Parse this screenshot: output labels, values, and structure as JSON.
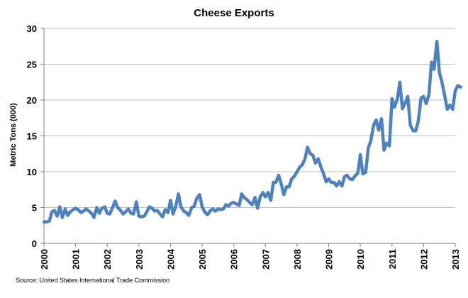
{
  "chart_data": {
    "type": "line",
    "title": "Cheese Exports",
    "ylabel": "Metric Tons (000)",
    "xlabel": "",
    "xlim": [
      2000,
      2013
    ],
    "ylim": [
      0,
      30
    ],
    "y_ticks": [
      "0",
      "5",
      "10",
      "15",
      "20",
      "25",
      "30"
    ],
    "x_ticks": [
      "2000",
      "2001",
      "2002",
      "2003",
      "2004",
      "2005",
      "2006",
      "2007",
      "2008",
      "2009",
      "2010",
      "2011",
      "2012",
      "2013"
    ],
    "grid": "horizontal",
    "legend": "none",
    "source": "Source: United States International Trade Commission",
    "series": [
      {
        "color": "#4f81bd",
        "points": [
          [
            2000.0,
            3.0
          ],
          [
            2000.08,
            3.0
          ],
          [
            2000.17,
            3.1
          ],
          [
            2000.25,
            4.4
          ],
          [
            2000.33,
            4.6
          ],
          [
            2000.42,
            3.8
          ],
          [
            2000.5,
            5.1
          ],
          [
            2000.58,
            3.6
          ],
          [
            2000.67,
            4.8
          ],
          [
            2000.75,
            3.9
          ],
          [
            2000.83,
            4.4
          ],
          [
            2000.92,
            4.7
          ],
          [
            2001.0,
            4.9
          ],
          [
            2001.08,
            4.7
          ],
          [
            2001.17,
            4.3
          ],
          [
            2001.25,
            4.5
          ],
          [
            2001.33,
            4.8
          ],
          [
            2001.42,
            4.5
          ],
          [
            2001.5,
            4.2
          ],
          [
            2001.58,
            3.6
          ],
          [
            2001.67,
            5.0
          ],
          [
            2001.75,
            4.2
          ],
          [
            2001.83,
            4.9
          ],
          [
            2001.92,
            5.1
          ],
          [
            2002.0,
            4.2
          ],
          [
            2002.08,
            4.1
          ],
          [
            2002.17,
            5.0
          ],
          [
            2002.25,
            5.9
          ],
          [
            2002.33,
            5.0
          ],
          [
            2002.42,
            4.6
          ],
          [
            2002.5,
            4.1
          ],
          [
            2002.58,
            4.4
          ],
          [
            2002.67,
            4.8
          ],
          [
            2002.75,
            4.2
          ],
          [
            2002.83,
            4.1
          ],
          [
            2002.92,
            5.8
          ],
          [
            2003.0,
            3.8
          ],
          [
            2003.08,
            3.7
          ],
          [
            2003.17,
            3.8
          ],
          [
            2003.25,
            4.4
          ],
          [
            2003.33,
            5.1
          ],
          [
            2003.42,
            4.9
          ],
          [
            2003.5,
            4.5
          ],
          [
            2003.58,
            4.6
          ],
          [
            2003.67,
            4.1
          ],
          [
            2003.75,
            3.7
          ],
          [
            2003.83,
            4.7
          ],
          [
            2003.92,
            4.3
          ],
          [
            2004.0,
            6.0
          ],
          [
            2004.08,
            4.1
          ],
          [
            2004.17,
            5.2
          ],
          [
            2004.25,
            6.9
          ],
          [
            2004.33,
            5.1
          ],
          [
            2004.42,
            4.5
          ],
          [
            2004.5,
            4.3
          ],
          [
            2004.58,
            3.9
          ],
          [
            2004.67,
            5.0
          ],
          [
            2004.75,
            5.2
          ],
          [
            2004.83,
            6.3
          ],
          [
            2004.92,
            6.8
          ],
          [
            2005.0,
            5.1
          ],
          [
            2005.08,
            4.4
          ],
          [
            2005.17,
            4.0
          ],
          [
            2005.25,
            4.5
          ],
          [
            2005.33,
            4.8
          ],
          [
            2005.42,
            4.5
          ],
          [
            2005.5,
            4.8
          ],
          [
            2005.58,
            4.7
          ],
          [
            2005.67,
            4.8
          ],
          [
            2005.75,
            5.4
          ],
          [
            2005.83,
            5.2
          ],
          [
            2005.92,
            5.6
          ],
          [
            2006.0,
            5.7
          ],
          [
            2006.08,
            5.5
          ],
          [
            2006.17,
            5.3
          ],
          [
            2006.25,
            6.9
          ],
          [
            2006.33,
            6.4
          ],
          [
            2006.42,
            6.1
          ],
          [
            2006.5,
            5.7
          ],
          [
            2006.58,
            5.4
          ],
          [
            2006.67,
            6.4
          ],
          [
            2006.75,
            4.9
          ],
          [
            2006.83,
            6.4
          ],
          [
            2006.92,
            7.1
          ],
          [
            2007.0,
            6.5
          ],
          [
            2007.08,
            7.1
          ],
          [
            2007.17,
            6.0
          ],
          [
            2007.25,
            8.5
          ],
          [
            2007.33,
            8.5
          ],
          [
            2007.42,
            9.5
          ],
          [
            2007.5,
            8.3
          ],
          [
            2007.58,
            6.8
          ],
          [
            2007.67,
            7.9
          ],
          [
            2007.75,
            7.9
          ],
          [
            2007.83,
            9.0
          ],
          [
            2007.92,
            9.4
          ],
          [
            2008.0,
            10.0
          ],
          [
            2008.08,
            10.6
          ],
          [
            2008.17,
            11.0
          ],
          [
            2008.25,
            11.8
          ],
          [
            2008.33,
            13.4
          ],
          [
            2008.42,
            12.5
          ],
          [
            2008.5,
            12.3
          ],
          [
            2008.58,
            11.2
          ],
          [
            2008.67,
            11.8
          ],
          [
            2008.75,
            10.7
          ],
          [
            2008.83,
            9.8
          ],
          [
            2008.92,
            8.6
          ],
          [
            2009.0,
            9.0
          ],
          [
            2009.08,
            8.5
          ],
          [
            2009.17,
            8.5
          ],
          [
            2009.25,
            8.0
          ],
          [
            2009.33,
            8.6
          ],
          [
            2009.42,
            8.0
          ],
          [
            2009.5,
            9.3
          ],
          [
            2009.58,
            9.5
          ],
          [
            2009.67,
            9.0
          ],
          [
            2009.75,
            8.9
          ],
          [
            2009.83,
            9.4
          ],
          [
            2009.92,
            9.8
          ],
          [
            2010.0,
            12.4
          ],
          [
            2010.08,
            9.7
          ],
          [
            2010.17,
            9.9
          ],
          [
            2010.25,
            13.3
          ],
          [
            2010.33,
            14.3
          ],
          [
            2010.42,
            16.5
          ],
          [
            2010.5,
            17.2
          ],
          [
            2010.58,
            15.8
          ],
          [
            2010.67,
            17.4
          ],
          [
            2010.75,
            13.0
          ],
          [
            2010.83,
            14.0
          ],
          [
            2010.92,
            13.6
          ],
          [
            2011.0,
            20.2
          ],
          [
            2011.08,
            19.0
          ],
          [
            2011.17,
            20.2
          ],
          [
            2011.25,
            22.5
          ],
          [
            2011.33,
            18.8
          ],
          [
            2011.42,
            19.6
          ],
          [
            2011.5,
            20.5
          ],
          [
            2011.58,
            16.5
          ],
          [
            2011.67,
            15.7
          ],
          [
            2011.75,
            15.7
          ],
          [
            2011.83,
            17.0
          ],
          [
            2011.92,
            20.3
          ],
          [
            2012.0,
            20.5
          ],
          [
            2012.08,
            19.5
          ],
          [
            2012.17,
            20.8
          ],
          [
            2012.25,
            25.3
          ],
          [
            2012.33,
            24.3
          ],
          [
            2012.42,
            28.2
          ],
          [
            2012.5,
            23.8
          ],
          [
            2012.58,
            22.5
          ],
          [
            2012.67,
            20.5
          ],
          [
            2012.75,
            18.7
          ],
          [
            2012.83,
            19.3
          ],
          [
            2012.92,
            18.7
          ],
          [
            2013.0,
            21.3
          ],
          [
            2013.08,
            22.0
          ],
          [
            2013.17,
            21.8
          ]
        ]
      }
    ]
  }
}
